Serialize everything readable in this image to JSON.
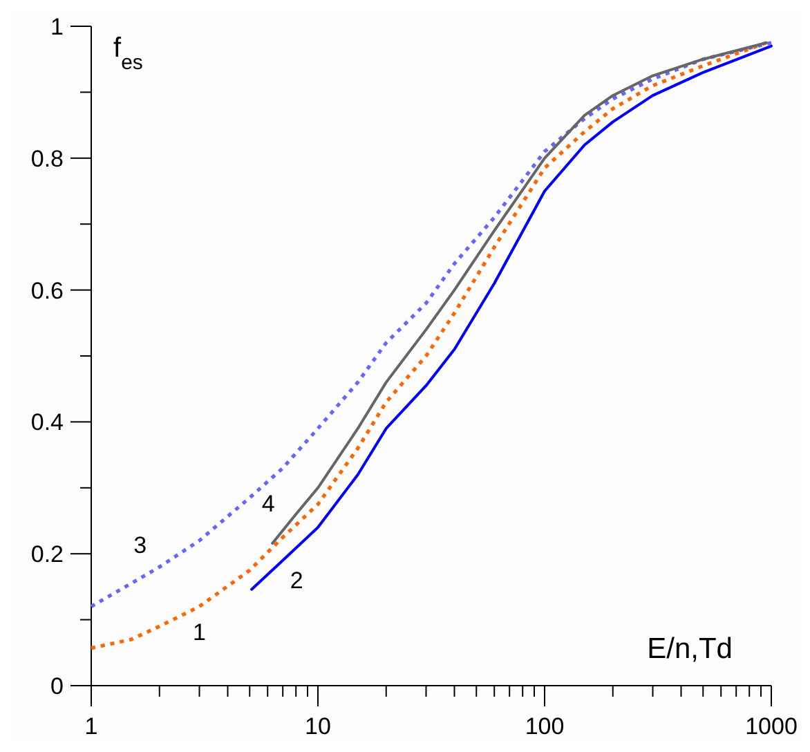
{
  "chart_data": {
    "type": "line",
    "xlabel": "E/n,Td",
    "ylabel": "f$_{es}$",
    "log": "x",
    "grid": false,
    "marker": "none",
    "xlim": [
      1,
      1000
    ],
    "ylim": [
      0,
      1
    ],
    "xticks": [
      1,
      {
        "value": 2,
        "label": null
      },
      {
        "value": 3,
        "label": null
      },
      {
        "value": 4,
        "label": null
      },
      {
        "value": 5,
        "label": null
      },
      {
        "value": 6,
        "label": null
      },
      {
        "value": 7,
        "label": null
      },
      {
        "value": 8,
        "label": null
      },
      {
        "value": 9,
        "label": null
      },
      10,
      {
        "value": 20,
        "label": null
      },
      {
        "value": 30,
        "label": null
      },
      {
        "value": 40,
        "label": null
      },
      {
        "value": 50,
        "label": null
      },
      {
        "value": 60,
        "label": null
      },
      {
        "value": 70,
        "label": null
      },
      {
        "value": 80,
        "label": null
      },
      {
        "value": 90,
        "label": null
      },
      100,
      {
        "value": 200,
        "label": null
      },
      {
        "value": 300,
        "label": null
      },
      {
        "value": 400,
        "label": null
      },
      {
        "value": 500,
        "label": null
      },
      {
        "value": 600,
        "label": null
      },
      {
        "value": 700,
        "label": null
      },
      {
        "value": 800,
        "label": null
      },
      {
        "value": 900,
        "label": null
      },
      1000
    ],
    "yticks": [
      0,
      {
        "value": 0.1,
        "label": null
      },
      0.2,
      {
        "value": 0.3,
        "label": null
      },
      0.4,
      {
        "value": 0.5,
        "label": null
      },
      0.6,
      {
        "value": 0.7,
        "label": null
      },
      0.8,
      {
        "value": 0.9,
        "label": null
      },
      1
    ],
    "series": [
      {
        "name": "1",
        "color": "#ff6600",
        "line_style": "dotted",
        "x": [
          1,
          1.5,
          2,
          3,
          5,
          7,
          10,
          15,
          20,
          30,
          40,
          60,
          100,
          150,
          200,
          300,
          500,
          950
        ],
        "values": [
          0.057,
          0.07,
          0.09,
          0.12,
          0.175,
          0.225,
          0.275,
          0.36,
          0.43,
          0.5,
          0.565,
          0.665,
          0.785,
          0.84,
          0.875,
          0.91,
          0.94,
          0.975
        ]
      },
      {
        "name": "2",
        "color": "#0000ff",
        "line_style": "solid",
        "x": [
          5.1,
          7,
          10,
          15,
          20,
          30,
          40,
          60,
          100,
          150,
          200,
          300,
          500,
          1000
        ],
        "values": [
          0.146,
          0.19,
          0.24,
          0.32,
          0.39,
          0.455,
          0.51,
          0.61,
          0.75,
          0.82,
          0.855,
          0.895,
          0.93,
          0.97
        ]
      },
      {
        "name": "3",
        "color": "#6666ff",
        "line_style": "dotted",
        "x": [
          1,
          2,
          3,
          5,
          7,
          10,
          15,
          20,
          30,
          40,
          60,
          100,
          150,
          200,
          300,
          500,
          1000
        ],
        "values": [
          0.12,
          0.18,
          0.22,
          0.285,
          0.33,
          0.39,
          0.46,
          0.52,
          0.58,
          0.64,
          0.71,
          0.81,
          0.86,
          0.89,
          0.92,
          0.95,
          0.975
        ]
      },
      {
        "name": "4",
        "color": "#666666",
        "line_style": "solid",
        "x": [
          6.3,
          8,
          10,
          15,
          20,
          30,
          40,
          60,
          100,
          150,
          200,
          300,
          500,
          950
        ],
        "values": [
          0.216,
          0.26,
          0.3,
          0.39,
          0.46,
          0.54,
          0.6,
          0.69,
          0.8,
          0.865,
          0.895,
          0.925,
          0.95,
          0.975
        ]
      }
    ]
  }
}
